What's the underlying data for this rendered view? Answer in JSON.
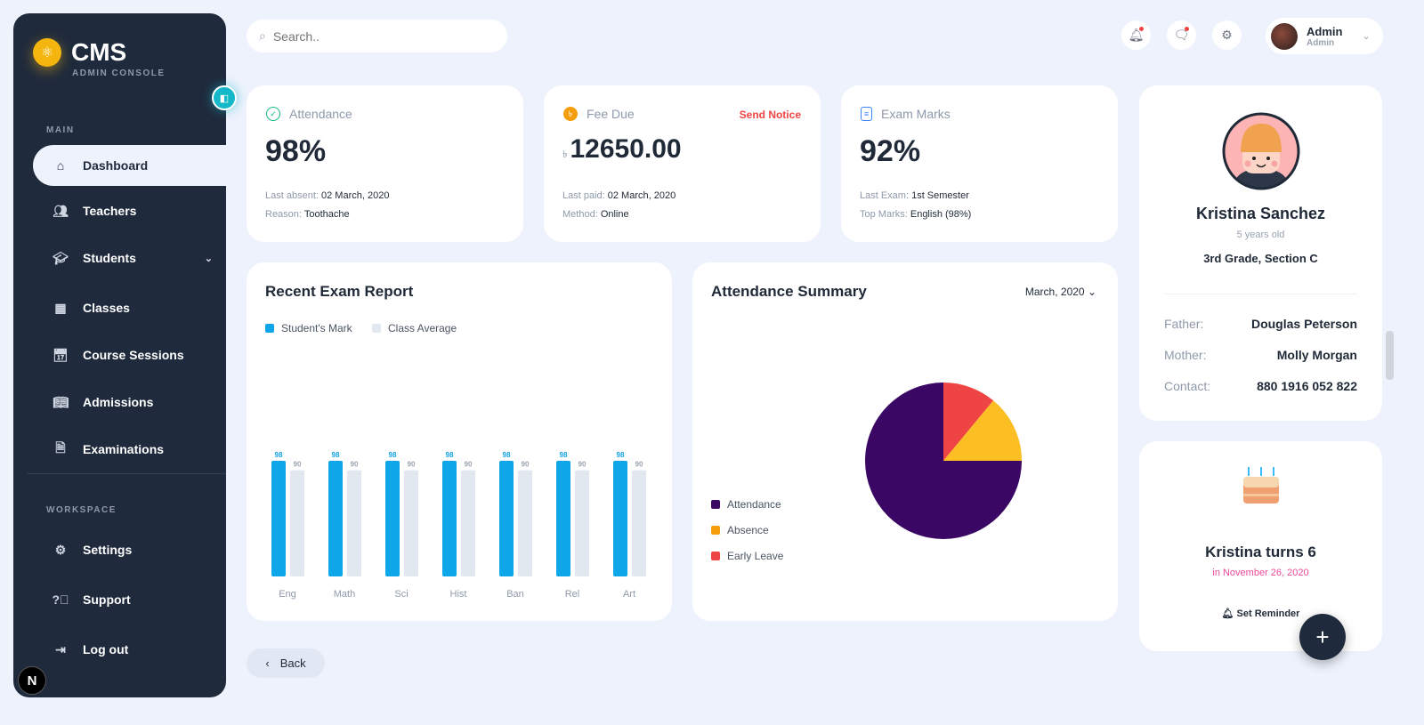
{
  "brand": {
    "title": "CMS",
    "subtitle": "ADMIN CONSOLE"
  },
  "sidebar": {
    "main_label": "MAIN",
    "workspace_label": "WORKSPACE",
    "items": [
      {
        "label": "Dashboard"
      },
      {
        "label": "Teachers"
      },
      {
        "label": "Students"
      },
      {
        "label": "Classes"
      },
      {
        "label": "Course Sessions"
      },
      {
        "label": "Admissions"
      },
      {
        "label": "Examinations"
      }
    ],
    "workspace": [
      {
        "label": "Settings"
      },
      {
        "label": "Support"
      },
      {
        "label": "Log out"
      }
    ]
  },
  "search": {
    "placeholder": "Search.."
  },
  "user": {
    "name": "Admin",
    "role": "Admin"
  },
  "stats": {
    "attendance": {
      "title": "Attendance",
      "value": "98%",
      "l1": "Last absent: ",
      "v1": "02 March, 2020",
      "l2": "Reason: ",
      "v2": "Toothache"
    },
    "fee": {
      "title": "Fee Due",
      "action": "Send Notice",
      "currency": "৳",
      "value": "12650.00",
      "l1": "Last paid: ",
      "v1": "02 March, 2020",
      "l2": "Method: ",
      "v2": "Online"
    },
    "exam": {
      "title": "Exam Marks",
      "value": "92%",
      "l1": "Last Exam: ",
      "v1": "1st Semester",
      "l2": "Top Marks: ",
      "v2": "English (98%)"
    }
  },
  "chart_data": [
    {
      "type": "bar",
      "title": "Recent Exam Report",
      "categories": [
        "Eng",
        "Math",
        "Sci",
        "Hist",
        "Ban",
        "Rel",
        "Art"
      ],
      "series": [
        {
          "name": "Student's Mark",
          "color": "#0ea5e9",
          "values": [
            98,
            98,
            98,
            98,
            98,
            98,
            98
          ]
        },
        {
          "name": "Class Average",
          "color": "#e2e8f0",
          "values": [
            90,
            90,
            90,
            90,
            90,
            90,
            90
          ]
        }
      ],
      "ylim": [
        0,
        98
      ]
    },
    {
      "type": "pie",
      "title": "Attendance Summary",
      "period": "March, 2020",
      "labels": [
        "Attendance",
        "Absence",
        "Early Leave"
      ],
      "values": [
        75,
        14,
        11
      ],
      "colors": [
        "#3b0764",
        "#fbbf24",
        "#ef4444"
      ],
      "legend_colors": [
        "#3b0764",
        "#f59e0b",
        "#ef4444"
      ]
    }
  ],
  "profile": {
    "name": "Kristina Sanchez",
    "age": "5 years old",
    "grade": "3rd Grade, Section C",
    "rows": [
      {
        "k": "Father:",
        "v": "Douglas Peterson"
      },
      {
        "k": "Mother:",
        "v": "Molly Morgan"
      },
      {
        "k": "Contact:",
        "v": "880 1916 052 822"
      }
    ]
  },
  "birthday": {
    "title": "Kristina turns 6",
    "date": "in November 26, 2020",
    "action": "Set Reminder"
  },
  "back_label": "Back"
}
